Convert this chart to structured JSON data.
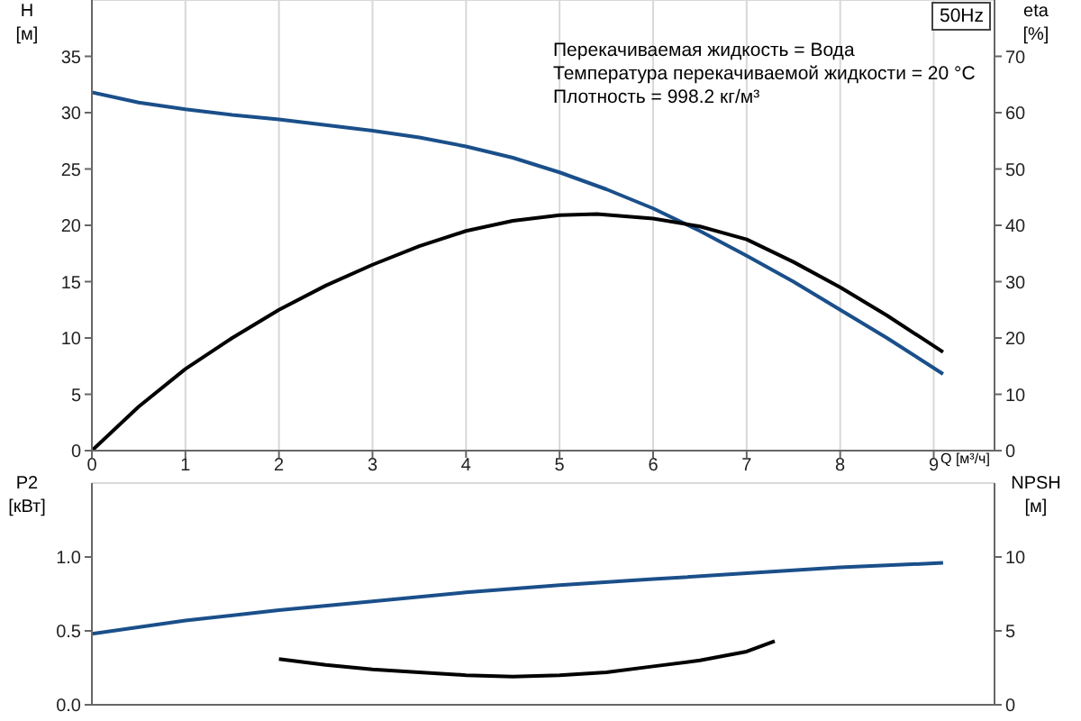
{
  "chart_data": [
    {
      "type": "line",
      "title": "50Hz",
      "xlabel": "Q [м³/ч]",
      "ylabel": "H [м]",
      "y2label": "eta [%]",
      "annotations": [
        "Перекачиваемая жидкость = Вода",
        "Температура перекачиваемой жидкости = 20 °C",
        "Плотность = 998.2 кг/м³"
      ],
      "xlim": [
        0,
        9.65
      ],
      "xticks": [
        0,
        1,
        2,
        3,
        4,
        5,
        6,
        7,
        8,
        9
      ],
      "ylim": [
        0,
        40
      ],
      "yticks": [
        0,
        5,
        10,
        15,
        20,
        25,
        30,
        35
      ],
      "y2lim": [
        0,
        80
      ],
      "y2ticks": [
        0,
        10,
        20,
        30,
        40,
        50,
        60,
        70
      ],
      "grid": true,
      "series": [
        {
          "color": "#1a4f8a",
          "x": [
            0,
            0.5,
            1,
            1.5,
            2,
            2.5,
            3,
            3.5,
            4,
            4.5,
            5,
            5.5,
            6,
            6.5,
            7,
            7.5,
            8,
            8.5,
            9.1
          ],
          "values": [
            31.8,
            30.9,
            30.3,
            29.8,
            29.4,
            28.9,
            28.4,
            27.8,
            27,
            26,
            24.7,
            23.2,
            21.5,
            19.5,
            17.3,
            15,
            12.5,
            10,
            6.8
          ]
        },
        {
          "color": "#000000",
          "axis": "y2",
          "x": [
            0,
            0.5,
            1,
            1.5,
            2,
            2.5,
            3,
            3.5,
            4,
            4.5,
            5,
            5.4,
            6,
            6.5,
            7,
            7.5,
            8,
            8.5,
            9.1
          ],
          "values": [
            0,
            7.8,
            14.5,
            20,
            25,
            29.3,
            33,
            36.3,
            39,
            40.8,
            41.8,
            42,
            41.2,
            39.8,
            37.5,
            33.5,
            29,
            24,
            17.5
          ]
        }
      ]
    },
    {
      "type": "line",
      "ylabel": "P2 [кВт]",
      "y2label": "NPSH [м]",
      "tick_labels": "y",
      "xlim": [
        0,
        9.65
      ],
      "xticks": [
        0,
        1,
        2,
        3,
        4,
        5,
        6,
        7,
        8,
        9
      ],
      "ylim": [
        0,
        1.5
      ],
      "yticks": [
        {
          "value": 0,
          "label": "0.0"
        },
        0.5,
        {
          "value": 1,
          "label": "1.0"
        }
      ],
      "y2lim": [
        0,
        15
      ],
      "y2ticks": [
        0,
        5,
        10
      ],
      "grid": true,
      "series": [
        {
          "color": "#1a4f8a",
          "x": [
            0,
            1,
            2,
            3,
            4,
            5,
            6,
            7,
            8,
            9.1
          ],
          "values": [
            0.48,
            0.57,
            0.64,
            0.7,
            0.76,
            0.81,
            0.85,
            0.89,
            0.93,
            0.96
          ]
        },
        {
          "color": "#000000",
          "axis": "y2",
          "x": [
            2,
            2.5,
            3,
            3.5,
            4,
            4.5,
            5,
            5.5,
            6,
            6.5,
            7,
            7.3
          ],
          "values": [
            3.1,
            2.7,
            2.4,
            2.2,
            2,
            1.9,
            2,
            2.2,
            2.6,
            3,
            3.6,
            4.3
          ]
        }
      ]
    }
  ]
}
